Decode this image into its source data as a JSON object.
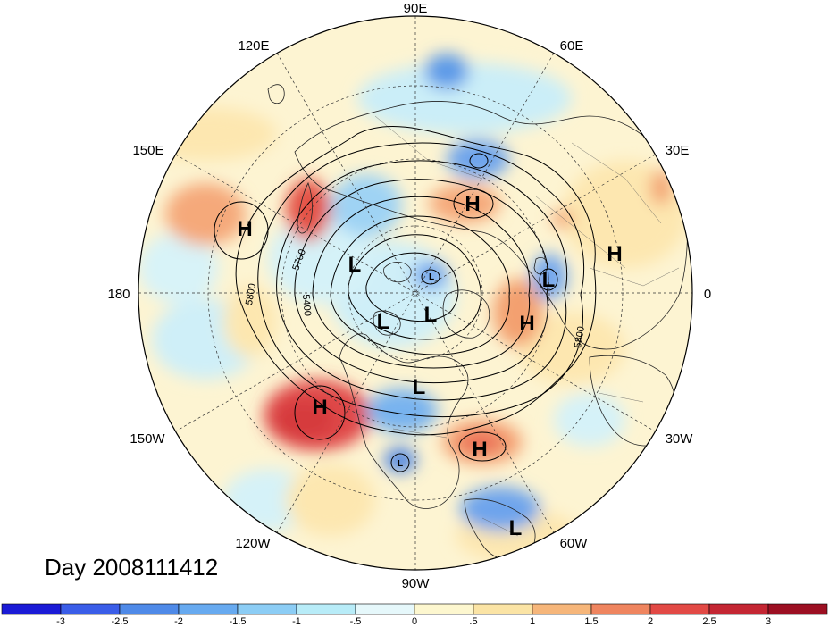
{
  "title": "Day 2008111412",
  "longitude_labels": [
    "90E",
    "60E",
    "30E",
    "0",
    "30W",
    "60W",
    "90W",
    "120W",
    "150W",
    "180",
    "150E",
    "120E"
  ],
  "contour_labels": [
    "5700",
    "5400",
    "5800",
    "5800"
  ],
  "pressure_centers": [
    "H",
    "H",
    "H",
    "H",
    "H",
    "H",
    "L",
    "L",
    "L",
    "L",
    "L",
    "L",
    "L",
    "L"
  ],
  "colorbar": {
    "ticks": [
      "-3",
      "-2.5",
      "-2",
      "-1.5",
      "-1",
      "-.5",
      "0",
      ".5",
      "1",
      "1.5",
      "2",
      "2.5",
      "3"
    ],
    "colors": [
      "#1a1ad6",
      "#3a5de8",
      "#4f8ae8",
      "#67aaf0",
      "#8ccdf5",
      "#b8ecf8",
      "#e6f8fb",
      "#fdf7cf",
      "#fbe4a5",
      "#f6b67a",
      "#ef855f",
      "#e24945",
      "#c42633",
      "#9c0f22"
    ]
  }
}
